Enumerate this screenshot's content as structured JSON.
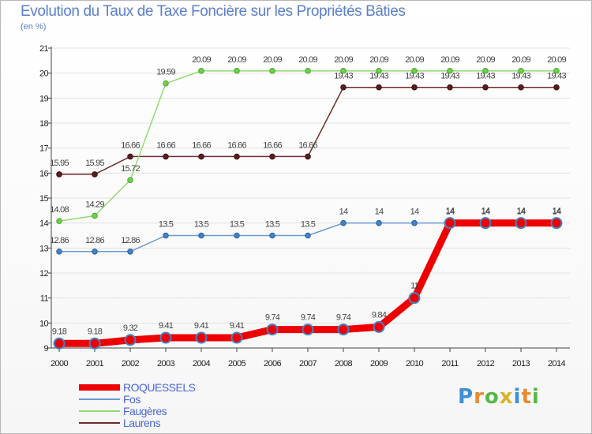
{
  "chart_data": {
    "type": "line",
    "title": "Evolution du Taux de Taxe Foncière sur les Propriétés Bâties",
    "subtitle": "(en %)",
    "xlabel": "",
    "ylabel": "",
    "ylim": [
      9,
      21
    ],
    "yticks": [
      9,
      10,
      11,
      12,
      13,
      14,
      15,
      16,
      17,
      18,
      19,
      20,
      21
    ],
    "categories": [
      "2000",
      "2001",
      "2002",
      "2003",
      "2004",
      "2005",
      "2006",
      "2007",
      "2008",
      "2009",
      "2010",
      "2011",
      "2012",
      "2013",
      "2014"
    ],
    "legend_position": "bottom-left",
    "series": [
      {
        "name": "ROQUESSELS",
        "color": "#ee0000",
        "values": [
          9.18,
          9.18,
          9.32,
          9.41,
          9.41,
          9.41,
          9.74,
          9.74,
          9.74,
          9.84,
          11,
          14,
          14,
          14,
          14
        ],
        "labels": [
          "9.18",
          "9.18",
          "9.32",
          "9.41",
          "9.41",
          "9.41",
          "9.74",
          "9.74",
          "9.74",
          "9.84",
          "11",
          "14",
          "14",
          "14",
          "14"
        ]
      },
      {
        "name": "Fos",
        "color": "#6a9ad0",
        "values": [
          12.86,
          12.86,
          12.86,
          13.5,
          13.5,
          13.5,
          13.5,
          13.5,
          14,
          14,
          14,
          14,
          14,
          14,
          14
        ],
        "labels": [
          "12.86",
          "12.86",
          "12.86",
          "13.5",
          "13.5",
          "13.5",
          "13.5",
          "13.5",
          "14",
          "14",
          "14",
          "14",
          "14",
          "14",
          "14"
        ]
      },
      {
        "name": "Faugères",
        "color": "#90dc70",
        "values": [
          14.08,
          14.29,
          15.72,
          19.59,
          20.09,
          20.09,
          20.09,
          20.09,
          20.09,
          20.09,
          20.09,
          20.09,
          20.09,
          20.09,
          20.09
        ],
        "labels": [
          "14.08",
          "14.29",
          "15.72",
          "19.59",
          "20.09",
          "20.09",
          "20.09",
          "20.09",
          "20.09",
          "20.09",
          "20.09",
          "20.09",
          "20.09",
          "20.09",
          "20.09"
        ]
      },
      {
        "name": "Laurens",
        "color": "#6e2b2b",
        "values": [
          15.95,
          15.95,
          16.66,
          16.66,
          16.66,
          16.66,
          16.66,
          16.66,
          19.43,
          19.43,
          19.43,
          19.43,
          19.43,
          19.43,
          19.43
        ],
        "labels": [
          "15.95",
          "15.95",
          "16.66",
          "16.66",
          "16.66",
          "16.66",
          "16.66",
          "16.66",
          "19.43",
          "19.43",
          "19.43",
          "19.43",
          "19.43",
          "19.43",
          "19.43"
        ]
      }
    ]
  },
  "branding": {
    "letters": [
      "P",
      "r",
      "o",
      "x",
      "i",
      "t",
      "i"
    ]
  }
}
